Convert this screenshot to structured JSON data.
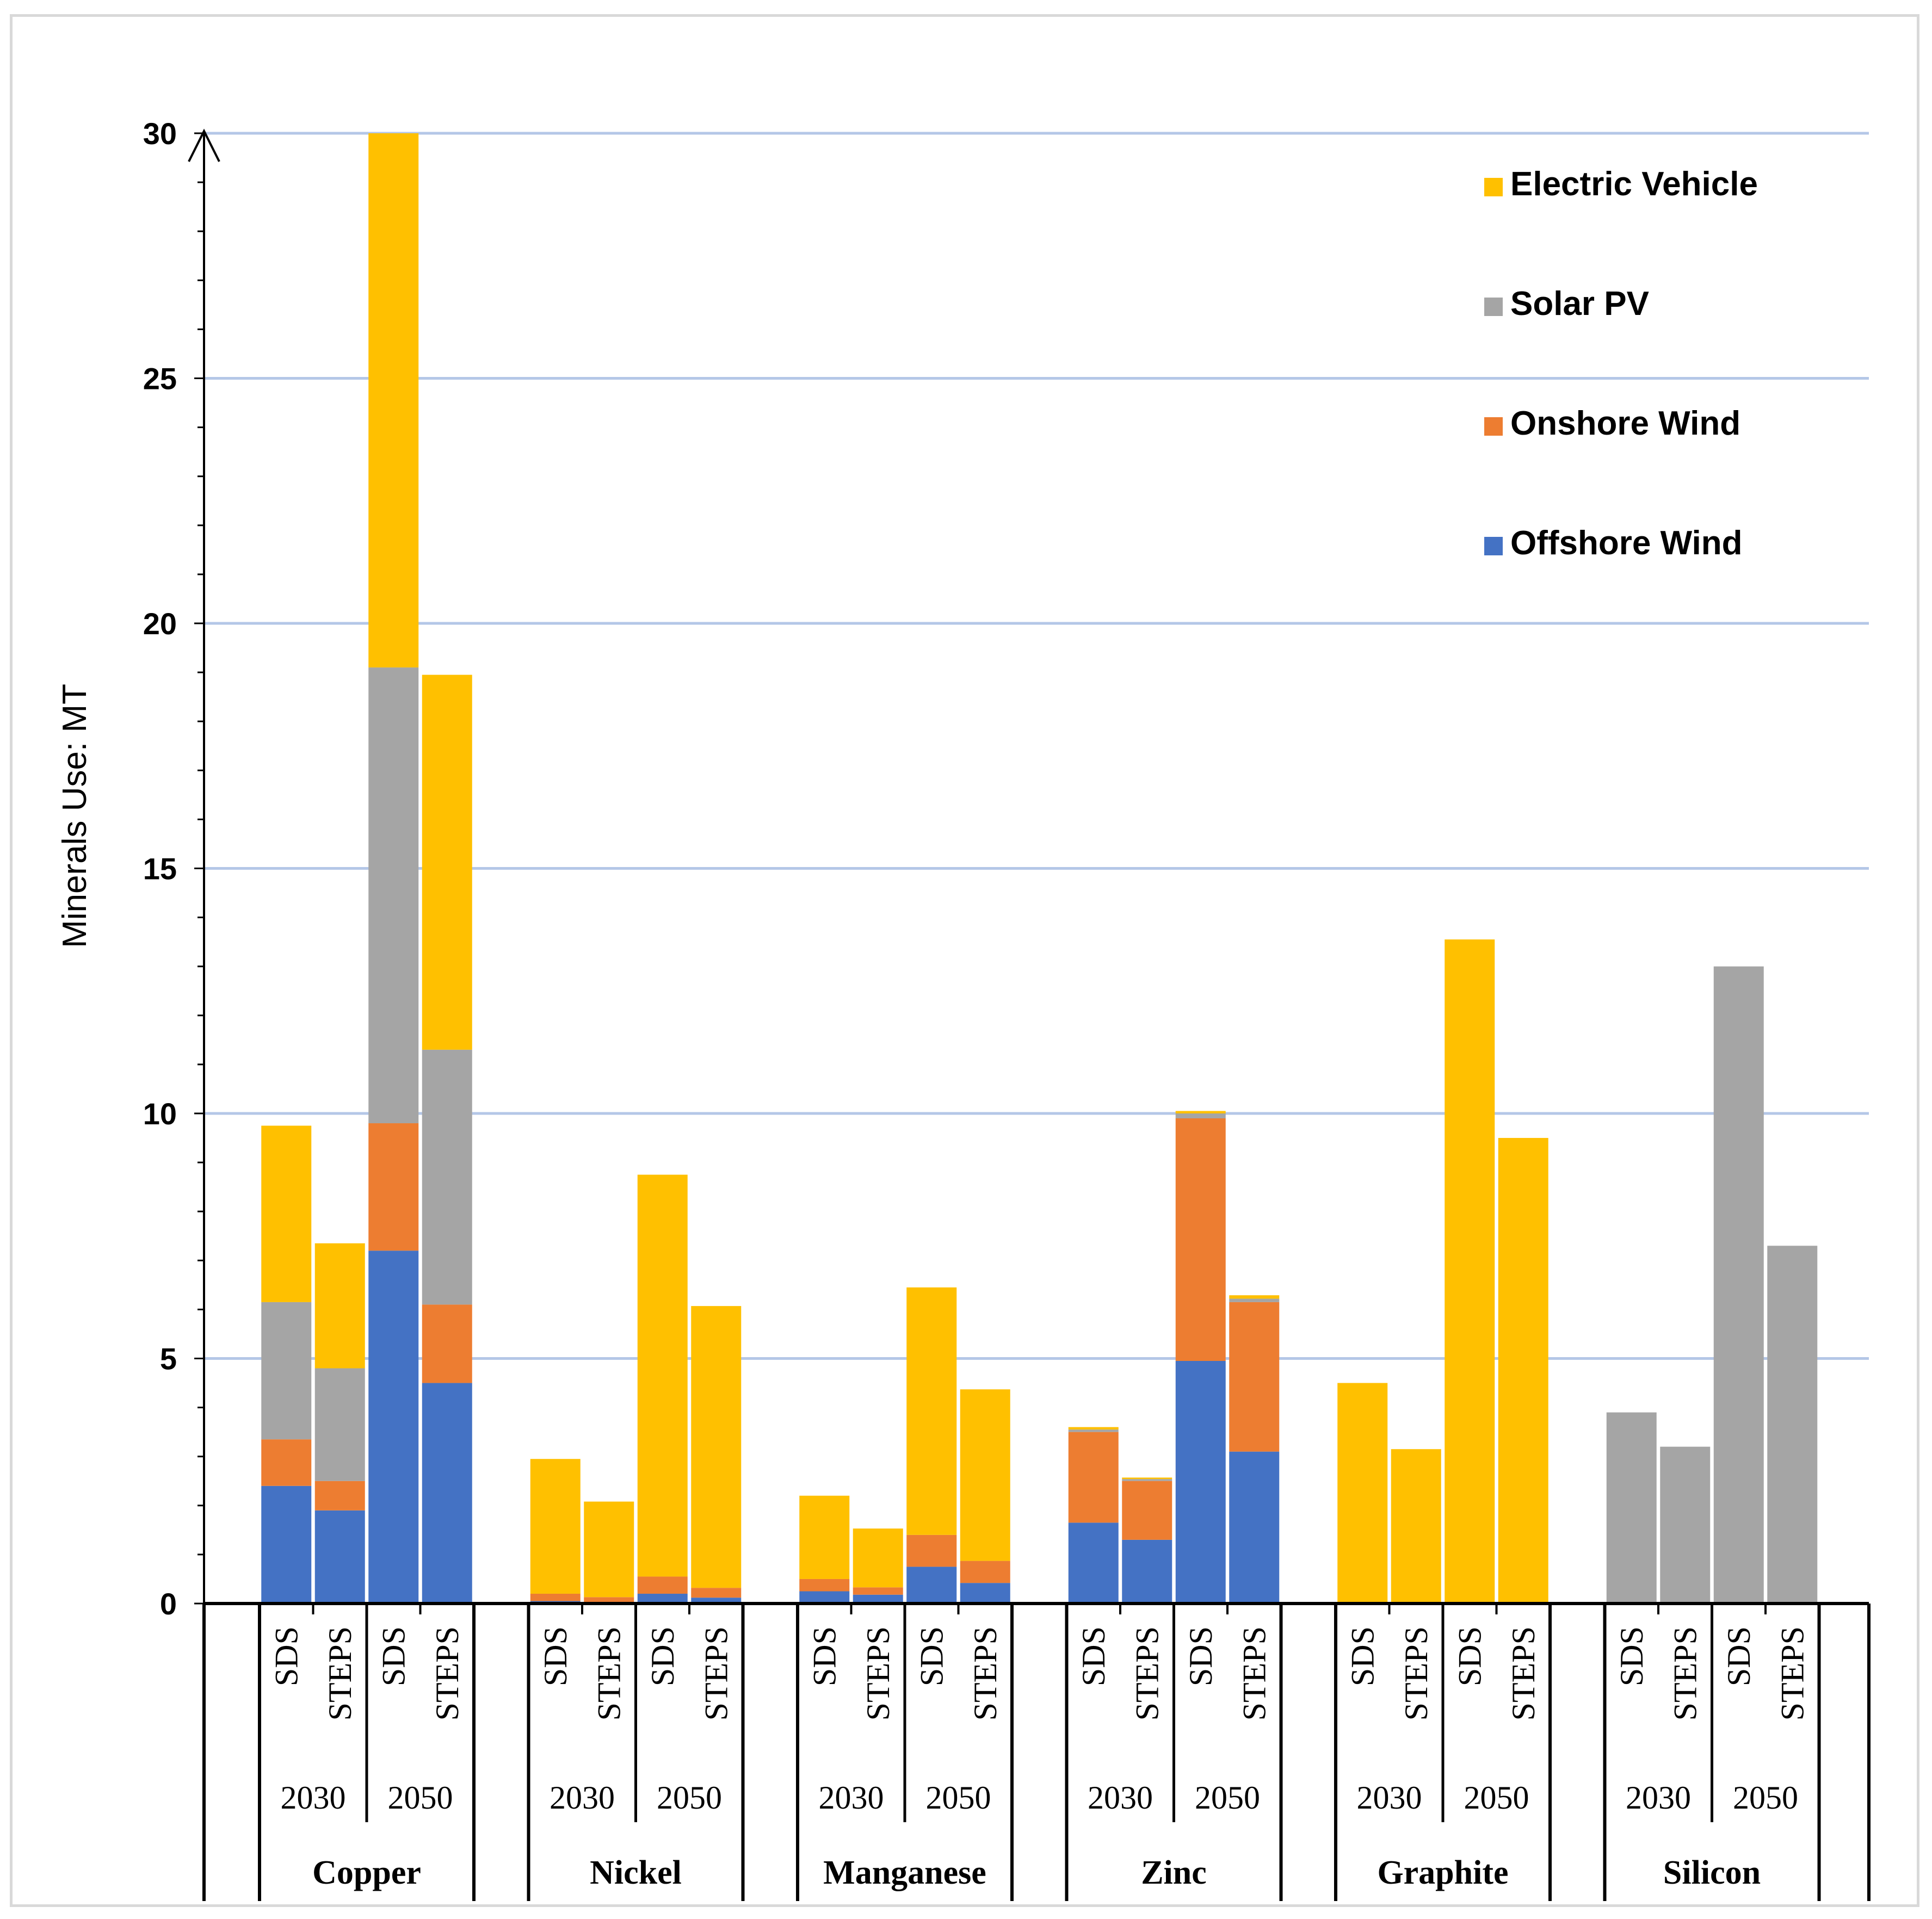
{
  "chart_data": {
    "type": "bar",
    "stacked": true,
    "ylabel": "Minerals Use: MT",
    "ylim": [
      0,
      30
    ],
    "yticks": [
      0,
      5,
      10,
      15,
      20,
      25,
      30
    ],
    "grid": true,
    "legend_position": "top-right",
    "minerals": [
      "Copper",
      "Nickel",
      "Manganese",
      "Zinc",
      "Graphite",
      "Silicon"
    ],
    "years": [
      "2030",
      "2050"
    ],
    "scenarios": [
      "SDS",
      "STEPS"
    ],
    "series": [
      {
        "name": "Offshore Wind",
        "color": "#4472c4",
        "values": [
          2.4,
          1.9,
          7.2,
          4.5,
          0.05,
          0.03,
          0.2,
          0.12,
          0.25,
          0.18,
          0.75,
          0.42,
          1.65,
          1.3,
          4.95,
          3.1,
          0,
          0,
          0,
          0,
          0,
          0,
          0,
          0
        ]
      },
      {
        "name": "Onshore Wind",
        "color": "#ed7d31",
        "values": [
          0.95,
          0.6,
          2.6,
          1.6,
          0.15,
          0.1,
          0.35,
          0.2,
          0.25,
          0.15,
          0.65,
          0.45,
          1.85,
          1.2,
          4.95,
          3.05,
          0,
          0,
          0,
          0,
          0,
          0,
          0,
          0
        ]
      },
      {
        "name": "Solar PV",
        "color": "#a5a5a5",
        "values": [
          2.8,
          2.3,
          9.3,
          5.2,
          0,
          0,
          0,
          0,
          0,
          0,
          0,
          0,
          0.05,
          0.04,
          0.1,
          0.07,
          0,
          0,
          0,
          0,
          3.9,
          3.2,
          13.0,
          7.3
        ]
      },
      {
        "name": "Electric Vehicle",
        "color": "#ffc000",
        "values": [
          3.6,
          2.55,
          10.9,
          7.65,
          2.75,
          1.95,
          8.2,
          5.75,
          1.7,
          1.2,
          5.05,
          3.5,
          0.05,
          0.03,
          0.05,
          0.07,
          4.5,
          3.15,
          13.55,
          9.5,
          0,
          0,
          0,
          0
        ]
      }
    ]
  }
}
